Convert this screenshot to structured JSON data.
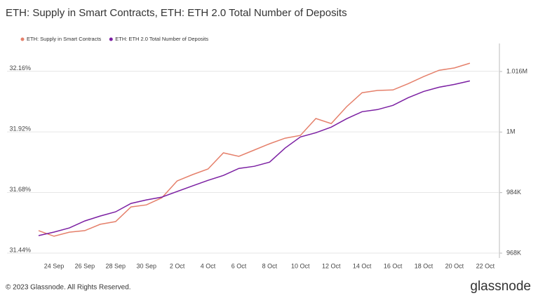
{
  "chart_data": {
    "type": "line",
    "title": "ETH: Supply in Smart Contracts, ETH: ETH 2.0 Total Number of Deposits",
    "categories": [
      null,
      "24 Sep",
      null,
      "26 Sep",
      null,
      "28 Sep",
      null,
      "30 Sep",
      null,
      "2 Oct",
      null,
      "4 Oct",
      null,
      "6 Oct",
      null,
      "8 Oct",
      null,
      "10 Oct",
      null,
      "12 Oct",
      null,
      "14 Oct",
      null,
      "16 Oct",
      null,
      "18 Oct",
      null,
      "20 Oct",
      null,
      "22 Oct"
    ],
    "series": [
      {
        "name": "ETH: Supply in Smart Contracts",
        "color": "#e5806b",
        "axis": "y",
        "values": [
          31.529,
          31.507,
          31.523,
          31.529,
          31.554,
          31.565,
          31.623,
          31.631,
          31.659,
          31.726,
          31.751,
          31.773,
          31.837,
          31.823,
          31.848,
          31.873,
          31.895,
          31.906,
          31.973,
          31.953,
          32.02,
          32.075,
          32.084,
          32.086,
          32.111,
          32.139,
          32.164,
          32.173,
          32.192,
          null
        ]
      },
      {
        "name": "ETH: ETH 2.0 Total Number of Deposits",
        "color": "#7b1fa2",
        "axis": "y2",
        "values": [
          972625,
          973550,
          974660,
          976510,
          977805,
          978915,
          981135,
          982060,
          982800,
          984280,
          985760,
          987240,
          988535,
          990385,
          990940,
          992050,
          995750,
          998710,
          999820,
          1001300,
          1003520,
          1005370,
          1005925,
          1007035,
          1009070,
          1010735,
          1011845,
          1012585,
          1013510,
          null
        ]
      }
    ],
    "ylim": [
      31.44,
      32.27
    ],
    "yticks": [
      {
        "value": 31.44,
        "label": "31.44%"
      },
      {
        "value": 31.68,
        "label": "31.68%"
      },
      {
        "value": 31.92,
        "label": "31.92%"
      },
      {
        "value": 32.16,
        "label": "32.16%"
      }
    ],
    "y2lim": [
      968000,
      1023400
    ],
    "y2ticks": [
      {
        "value": 968000,
        "label": "968K"
      },
      {
        "value": 984000,
        "label": "984K"
      },
      {
        "value": 1000000,
        "label": "1M"
      },
      {
        "value": 1016000,
        "label": "1.016M"
      }
    ],
    "grid": true
  },
  "footer": "© 2023 Glassnode. All Rights Reserved.",
  "brand": "glassnode"
}
